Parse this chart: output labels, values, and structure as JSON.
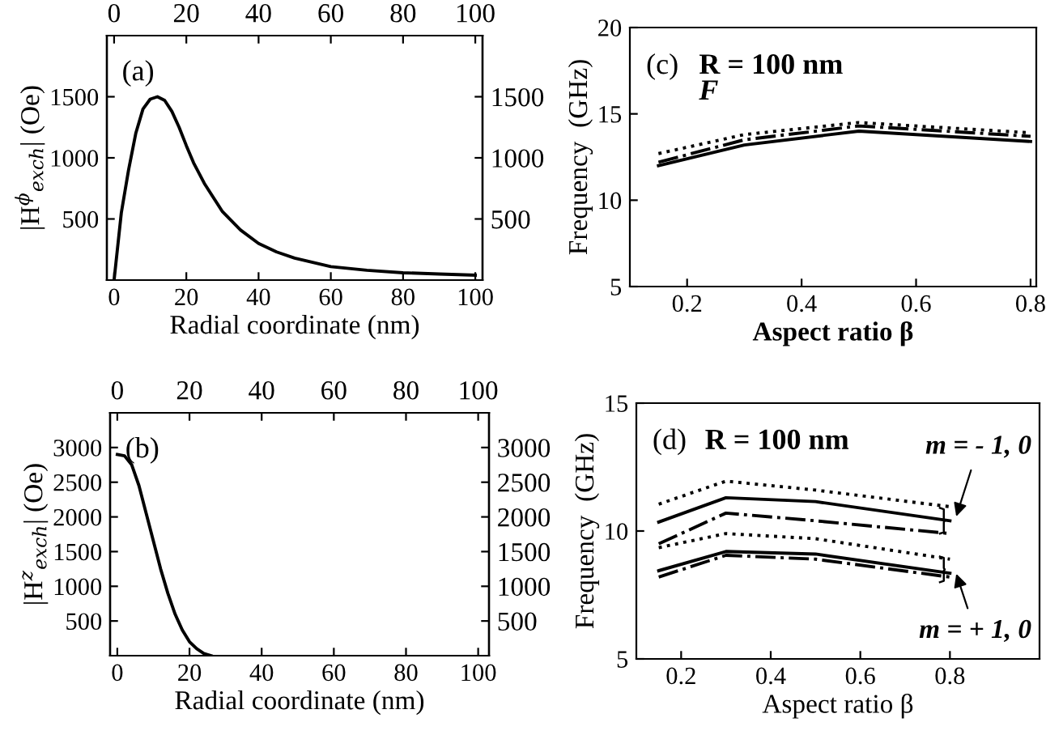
{
  "chart_data": [
    {
      "type": "line",
      "xlabel": "Radial coordinate (nm)",
      "ylabel": "|H$^{ϕ}$$_{exch}$| (Oe)",
      "xlim": [
        -2,
        102
      ],
      "xticks": [
        0,
        20,
        40,
        60,
        80,
        100
      ],
      "ylim": [
        0,
        2000
      ],
      "yticks": [
        500,
        1000,
        1500
      ],
      "x2lim": [
        -2,
        102
      ],
      "x2ticks": [
        0,
        20,
        40,
        60,
        80,
        100
      ],
      "y2lim": [
        0,
        2000
      ],
      "y2ticks": [
        500,
        1000,
        1500
      ],
      "annotations": [
        "(a)"
      ],
      "series": [
        {
          "color": "#000000",
          "line_style": "solid",
          "x": [
            0,
            2,
            4,
            6,
            8,
            10,
            12,
            14,
            16,
            18,
            20,
            22,
            25,
            30,
            35,
            40,
            45,
            50,
            60,
            70,
            80,
            90,
            100
          ],
          "values": [
            0,
            550,
            900,
            1200,
            1400,
            1480,
            1500,
            1470,
            1380,
            1250,
            1100,
            960,
            790,
            560,
            410,
            300,
            230,
            180,
            110,
            80,
            60,
            50,
            40
          ]
        }
      ]
    },
    {
      "type": "line",
      "xlabel": "Radial coordinate (nm)",
      "ylabel": "|H$^{z}$$_{exch}$| (Oe)",
      "xlim": [
        -2,
        103
      ],
      "xticks": [
        0,
        20,
        40,
        60,
        80,
        100
      ],
      "ylim": [
        0,
        3500
      ],
      "yticks": [
        500,
        1000,
        1500,
        2000,
        2500,
        3000
      ],
      "x2lim": [
        -2,
        103
      ],
      "x2ticks": [
        0,
        20,
        40,
        60,
        80,
        100
      ],
      "y2lim": [
        0,
        3500
      ],
      "y2ticks": [
        500,
        1000,
        1500,
        2000,
        2500,
        3000
      ],
      "annotations": [
        "(b)"
      ],
      "series": [
        {
          "color": "#000000",
          "line_style": "solid",
          "x": [
            0,
            2,
            4,
            6,
            8,
            10,
            12,
            14,
            16,
            18,
            20,
            22,
            24,
            26
          ],
          "values": [
            2900,
            2880,
            2750,
            2450,
            2050,
            1650,
            1250,
            900,
            600,
            370,
            200,
            100,
            30,
            0
          ]
        }
      ]
    },
    {
      "type": "line",
      "xlabel": "Aspect ratio β",
      "ylabel": "Frequency  (GHz)",
      "xlim": [
        0.1,
        0.81
      ],
      "xticks": [
        0.2,
        0.4,
        0.6,
        0.8
      ],
      "ylim": [
        5,
        20
      ],
      "yticks": [
        5,
        10,
        15,
        20
      ],
      "annotations": [
        "(c)",
        "R = 100 nm",
        "F"
      ],
      "x": [
        0.15,
        0.3,
        0.5,
        0.8
      ],
      "series": [
        {
          "color": "#000000",
          "line_style": "solid",
          "values": [
            12.0,
            13.2,
            14.0,
            13.4
          ]
        },
        {
          "color": "#000000",
          "line_style": "dashed",
          "values": [
            12.2,
            13.5,
            14.3,
            13.7
          ]
        },
        {
          "color": "#000000",
          "line_style": "dotted",
          "values": [
            12.7,
            13.8,
            14.5,
            13.9
          ]
        }
      ]
    },
    {
      "type": "line",
      "xlabel": "Aspect ratio β",
      "ylabel": "Frequency  (GHz)",
      "xlim": [
        0.1,
        1.0
      ],
      "xticks": [
        0.2,
        0.4,
        0.6,
        0.8
      ],
      "ylim": [
        5,
        15
      ],
      "yticks": [
        5,
        10,
        15
      ],
      "annotations": [
        "(d)",
        "R = 100 nm",
        "m = - 1, 0",
        "m = + 1, 0"
      ],
      "x": [
        0.15,
        0.3,
        0.5,
        0.8
      ],
      "series": [
        {
          "color": "#000000",
          "line_style": "dotted",
          "values": [
            11.05,
            11.95,
            11.6,
            10.95
          ]
        },
        {
          "color": "#000000",
          "line_style": "solid",
          "values": [
            10.35,
            11.3,
            11.15,
            10.4
          ]
        },
        {
          "color": "#000000",
          "line_style": "dashed",
          "values": [
            9.5,
            10.7,
            10.4,
            9.9
          ]
        },
        {
          "color": "#000000",
          "line_style": "dotted",
          "values": [
            9.35,
            9.9,
            9.7,
            8.9
          ]
        },
        {
          "color": "#000000",
          "line_style": "solid",
          "values": [
            8.45,
            9.2,
            9.1,
            8.35
          ]
        },
        {
          "color": "#000000",
          "line_style": "dashed",
          "values": [
            8.2,
            9.05,
            8.9,
            8.2
          ]
        }
      ]
    }
  ]
}
